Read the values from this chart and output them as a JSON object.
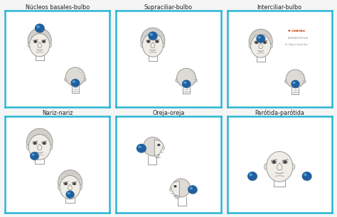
{
  "background_color": "#f5f5f5",
  "panel_border_color": "#29b6d4",
  "panel_titles": [
    "Núcleos basales-bulbo",
    "Supraciliar-bulbo",
    "Interciliar-bulbo",
    "Nariz-nariz",
    "Oreja-oreja",
    "Parótida-parótida"
  ],
  "dot_color": "#2060a0",
  "dot_highlight": "#5aacdc",
  "title_fontsize": 5.8,
  "panel_bg": "#ffffff",
  "head_color": "#e8e4df",
  "head_ec": "#999999",
  "face_color": "#f0ece6",
  "logo_centro": "CENTRO",
  "logo_bio": "BIOENERGÉTICA",
  "logo_dr": "Dr. Miguel Ojeda Rios"
}
